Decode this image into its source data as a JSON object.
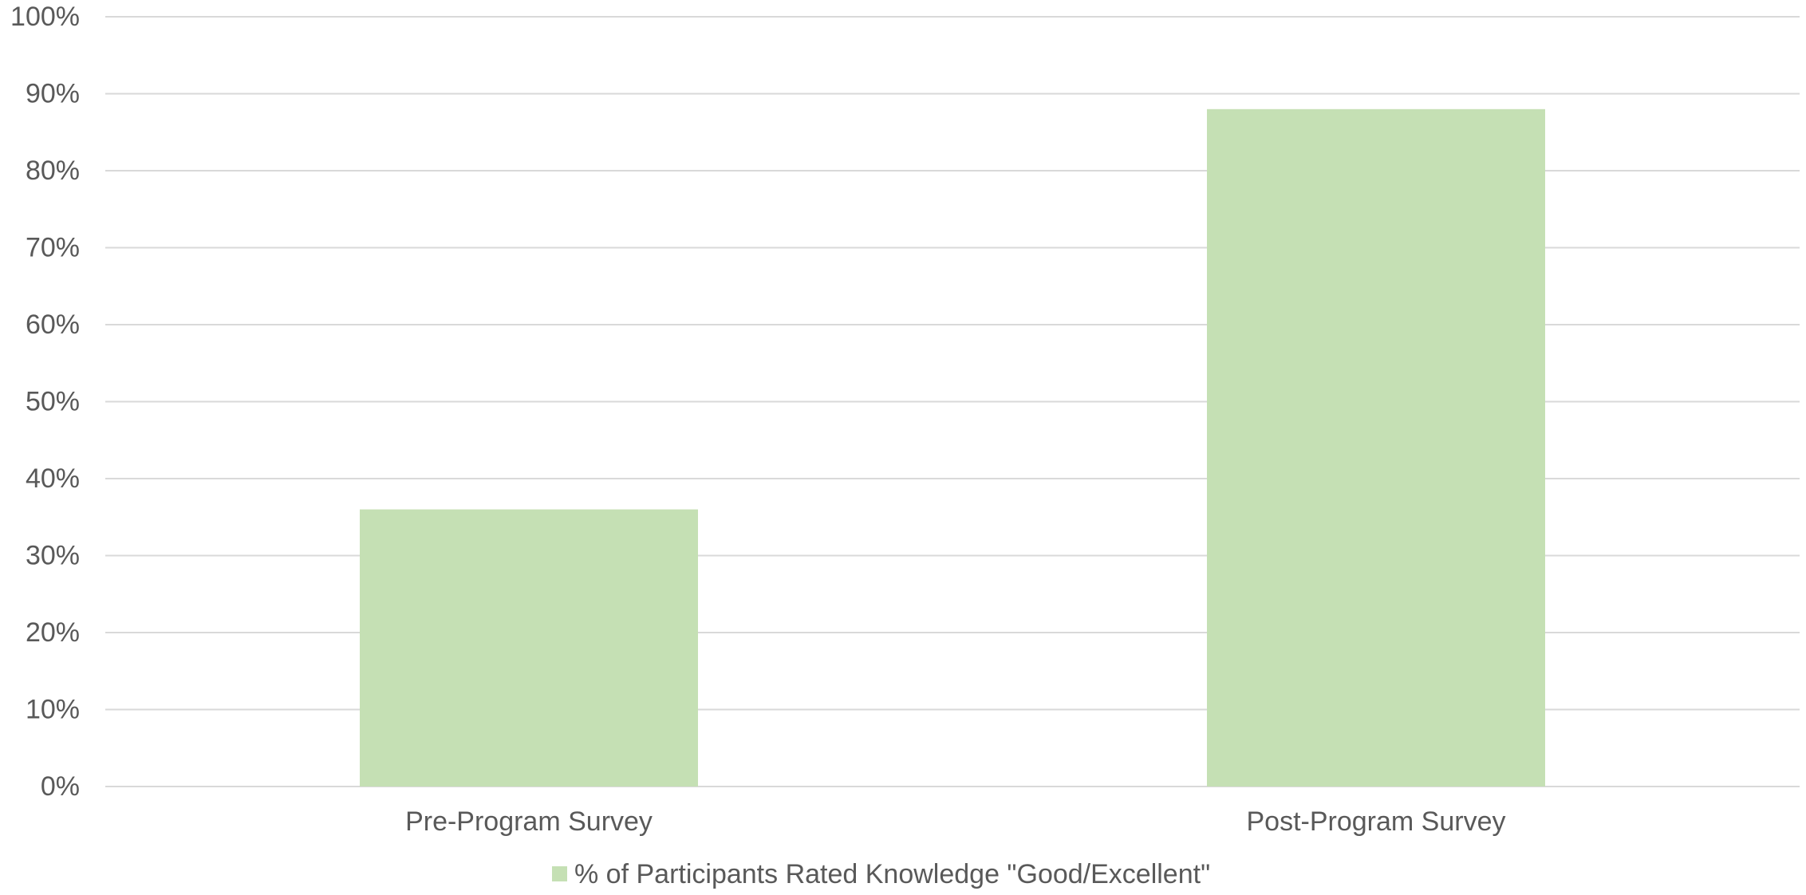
{
  "chart_data": {
    "type": "bar",
    "title": "",
    "xlabel": "",
    "ylabel": "",
    "categories": [
      "Pre-Program Survey",
      "Post-Program Survey"
    ],
    "series": [
      {
        "name": "% of Participants Rated Knowledge \"Good/Excellent\"",
        "values": [
          36,
          88
        ],
        "color": "#c5e0b4"
      }
    ],
    "ylim": [
      0,
      100
    ],
    "yticks": [
      "0%",
      "10%",
      "20%",
      "30%",
      "40%",
      "50%",
      "60%",
      "70%",
      "80%",
      "90%",
      "100%"
    ],
    "grid": true,
    "legend_position": "bottom-center",
    "colors": {
      "bar": "#c5e0b4",
      "gridline": "#d9d9d9",
      "text": "#595959"
    }
  }
}
